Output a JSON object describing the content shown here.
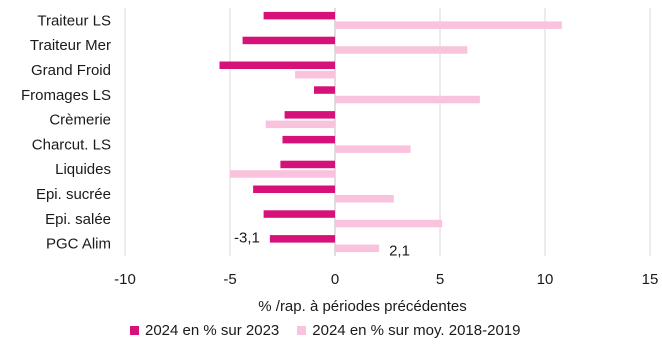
{
  "chart_data": {
    "type": "bar",
    "orientation": "horizontal",
    "categories": [
      "Traiteur LS",
      "Traiteur Mer",
      "Grand Froid",
      "Fromages LS",
      "Crèmerie",
      "Charcut. LS",
      "Liquides",
      "Epi. sucrée",
      "Epi. salée",
      "PGC Alim"
    ],
    "series": [
      {
        "name": "2024 en % sur 2023",
        "color": "#d6127a",
        "values": [
          -3.4,
          -4.4,
          -5.5,
          -1.0,
          -2.4,
          -2.5,
          -2.6,
          -3.9,
          -3.4,
          -3.1
        ]
      },
      {
        "name": "2024 en % sur moy. 2018-2019",
        "color": "#f9c3dd",
        "values": [
          10.8,
          6.3,
          -1.9,
          6.9,
          -3.3,
          3.6,
          -5.0,
          2.8,
          5.1,
          2.1
        ]
      }
    ],
    "data_labels": [
      {
        "series": 0,
        "category": "PGC Alim",
        "text": "-3,1"
      },
      {
        "series": 1,
        "category": "PGC Alim",
        "text": "2,1"
      }
    ],
    "xlim": [
      -10,
      15
    ],
    "xticks": [
      -10,
      -5,
      0,
      5,
      10,
      15
    ],
    "xlabel": "% /rap. à périodes précédentes",
    "grid": "vertical",
    "gridline_color": "#d9d9d9",
    "legend_position": "bottom"
  }
}
